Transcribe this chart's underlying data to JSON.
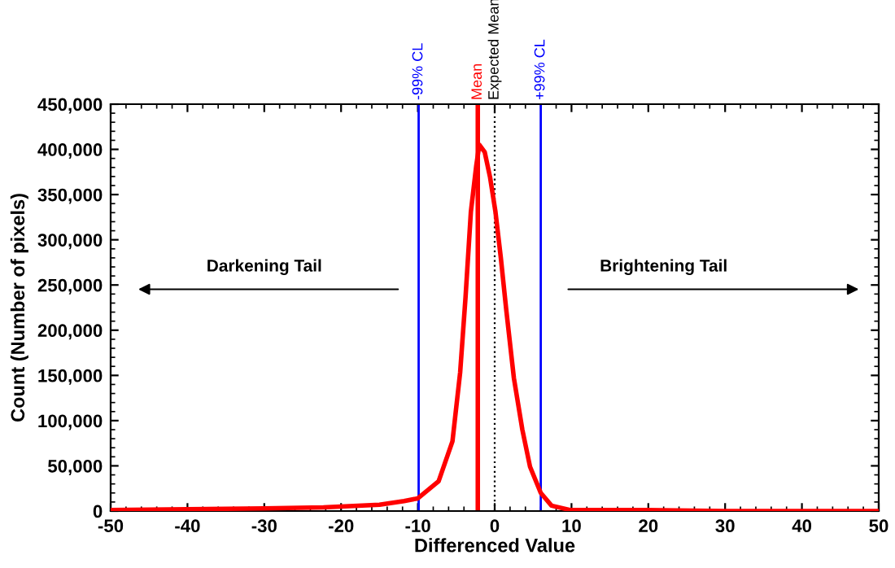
{
  "chart_data": {
    "type": "line",
    "xlabel": "Differenced Value",
    "ylabel": "Count (Number of pixels)",
    "xlim": [
      -50,
      50
    ],
    "xticks": [
      -50,
      -40,
      -30,
      -20,
      -10,
      0,
      10,
      20,
      30,
      40,
      50
    ],
    "ylim": [
      0,
      450000
    ],
    "yticks": [
      {
        "value": 0,
        "label": "0"
      },
      {
        "value": 50000,
        "label": "50,000"
      },
      {
        "value": 100000,
        "label": "100,000"
      },
      {
        "value": 150000,
        "label": "150,000"
      },
      {
        "value": 200000,
        "label": "200,000"
      },
      {
        "value": 250000,
        "label": "250,000"
      },
      {
        "value": 300000,
        "label": "300,000"
      },
      {
        "value": 350000,
        "label": "350,000"
      },
      {
        "value": 400000,
        "label": "400,000"
      },
      {
        "value": 450000,
        "label": "450,000"
      }
    ],
    "grid": false,
    "legend": false,
    "marker": "none",
    "line_style": "solid",
    "series": [
      {
        "color": "#ff0000",
        "x": [
          -50,
          -40,
          -30,
          -22.3,
          -15,
          -11.8,
          -10,
          -7.3,
          -5.5,
          -4.5,
          -3.8,
          -3.1,
          -2.4,
          -2.0,
          -1.3,
          -0.6,
          0.1,
          0.8,
          1.5,
          2.5,
          3.6,
          4.6,
          6.0,
          7.4,
          9.9,
          19.7,
          30,
          50
        ],
        "values": [
          1000,
          2000,
          3000,
          4000,
          7000,
          11000,
          14000,
          33000,
          77000,
          153000,
          236000,
          331000,
          382000,
          405000,
          397000,
          369000,
          331000,
          280000,
          223000,
          147000,
          90000,
          49000,
          20000,
          6000,
          1000,
          1000,
          0,
          0
        ]
      }
    ],
    "ref_lines": [
      {
        "axis": "x",
        "value": -9.9,
        "label": "-99% CL",
        "color": "#0000ff",
        "line_style": "solid"
      },
      {
        "axis": "x",
        "value": -2.2,
        "label": "Mean",
        "color": "#ff0000",
        "line_style": "solid"
      },
      {
        "axis": "x",
        "value": 0,
        "label": "Expected Mean",
        "color": "#000000",
        "line_style": "dotted"
      },
      {
        "axis": "x",
        "value": 6.0,
        "label": "+99% CL",
        "color": "#0000ff",
        "line_style": "solid"
      }
    ],
    "annotations": [
      "Darkening Tail",
      "Brightening Tail"
    ]
  }
}
